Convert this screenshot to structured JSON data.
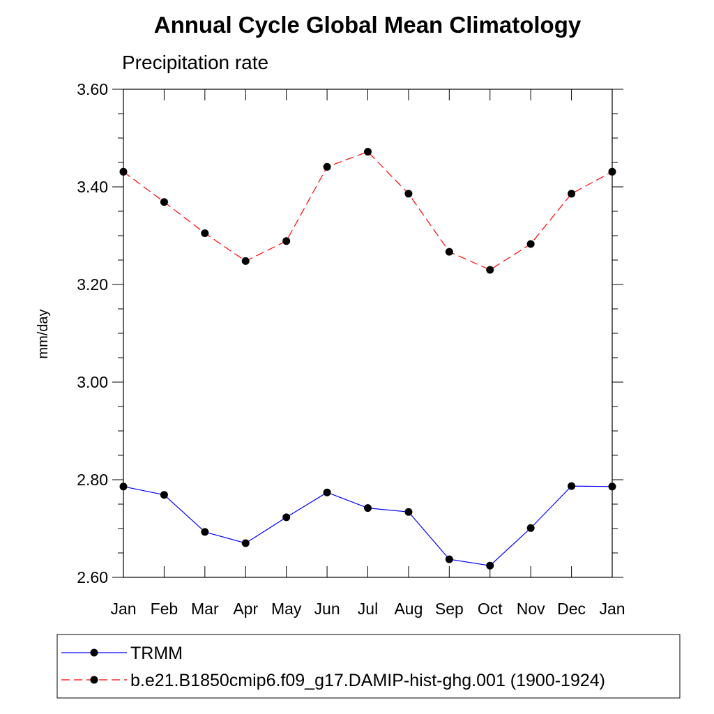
{
  "chart_data": {
    "type": "line",
    "title": "Annual Cycle Global Mean Climatology",
    "subtitle": "Precipitation rate",
    "ylabel": "mm/day",
    "xlabel": "",
    "categories": [
      "Jan",
      "Feb",
      "Mar",
      "Apr",
      "May",
      "Jun",
      "Jul",
      "Aug",
      "Sep",
      "Oct",
      "Nov",
      "Dec",
      "Jan"
    ],
    "ylim": [
      2.6,
      3.6
    ],
    "yticks": [
      "2.60",
      "2.80",
      "3.00",
      "3.20",
      "3.40",
      "3.60"
    ],
    "series": [
      {
        "name": "TRMM",
        "color": "#0000ff",
        "line_style": "solid",
        "marker": "filled-circle",
        "values": [
          2.786,
          2.769,
          2.693,
          2.67,
          2.723,
          2.774,
          2.742,
          2.734,
          2.637,
          2.624,
          2.701,
          2.787,
          2.786
        ]
      },
      {
        "name": "b.e21.B1850cmip6.f09_g17.DAMIP-hist-ghg.001 (1900-1924)",
        "color": "#ff0000",
        "line_style": "dashed",
        "marker": "filled-circle",
        "values": [
          3.431,
          3.369,
          3.305,
          3.248,
          3.289,
          3.441,
          3.472,
          3.386,
          3.267,
          3.23,
          3.283,
          3.386,
          3.431
        ]
      }
    ],
    "grid": false,
    "legend_position": "bottom"
  }
}
